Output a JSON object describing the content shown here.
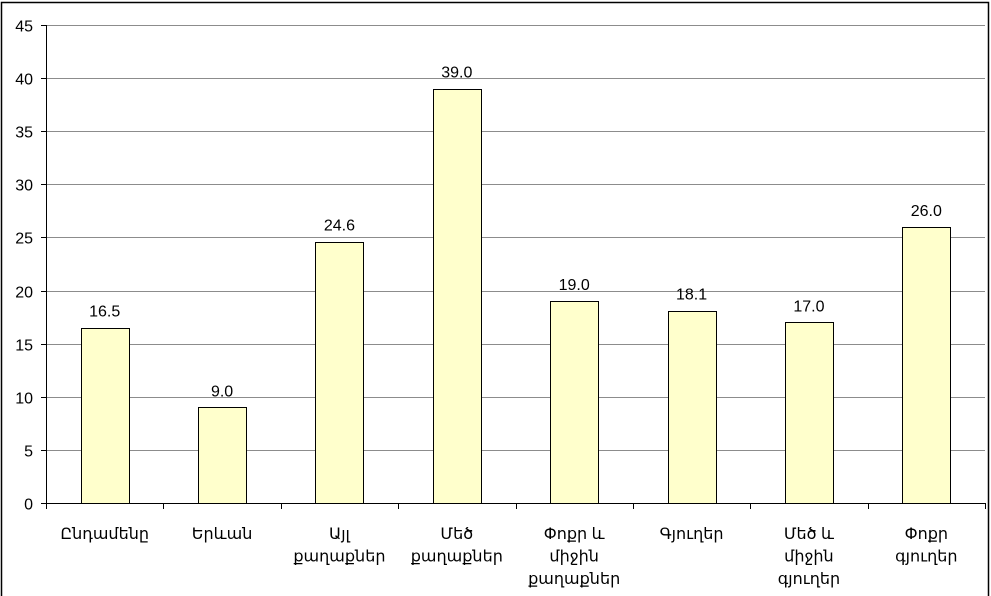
{
  "chart_data": {
    "type": "bar",
    "categories": [
      "Ընդամենը",
      "Երևան",
      "Այլ\nքաղաքներ",
      "Մեծ\nքաղաքներ",
      "Փոքր և\nմիջին\nքաղաքներ",
      "Գյուղեր",
      "Մեծ և\nմիջին\nգյուղեր",
      "Փոքր\nգյուղեր"
    ],
    "values": [
      16.5,
      9.0,
      24.6,
      39.0,
      19.0,
      18.1,
      17.0,
      26.0
    ],
    "data_labels": [
      "16.5",
      "9.0",
      "24.6",
      "39.0",
      "19.0",
      "18.1",
      "17.0",
      "26.0"
    ],
    "ylim": [
      0,
      45
    ],
    "yticks": [
      0,
      5,
      10,
      15,
      20,
      25,
      30,
      35,
      40,
      45
    ],
    "grid": true,
    "colors": {
      "bar_fill": "#FFFFCC",
      "bar_stroke": "#000000",
      "grid": "#8C8C8C",
      "axis": "#000000"
    }
  }
}
